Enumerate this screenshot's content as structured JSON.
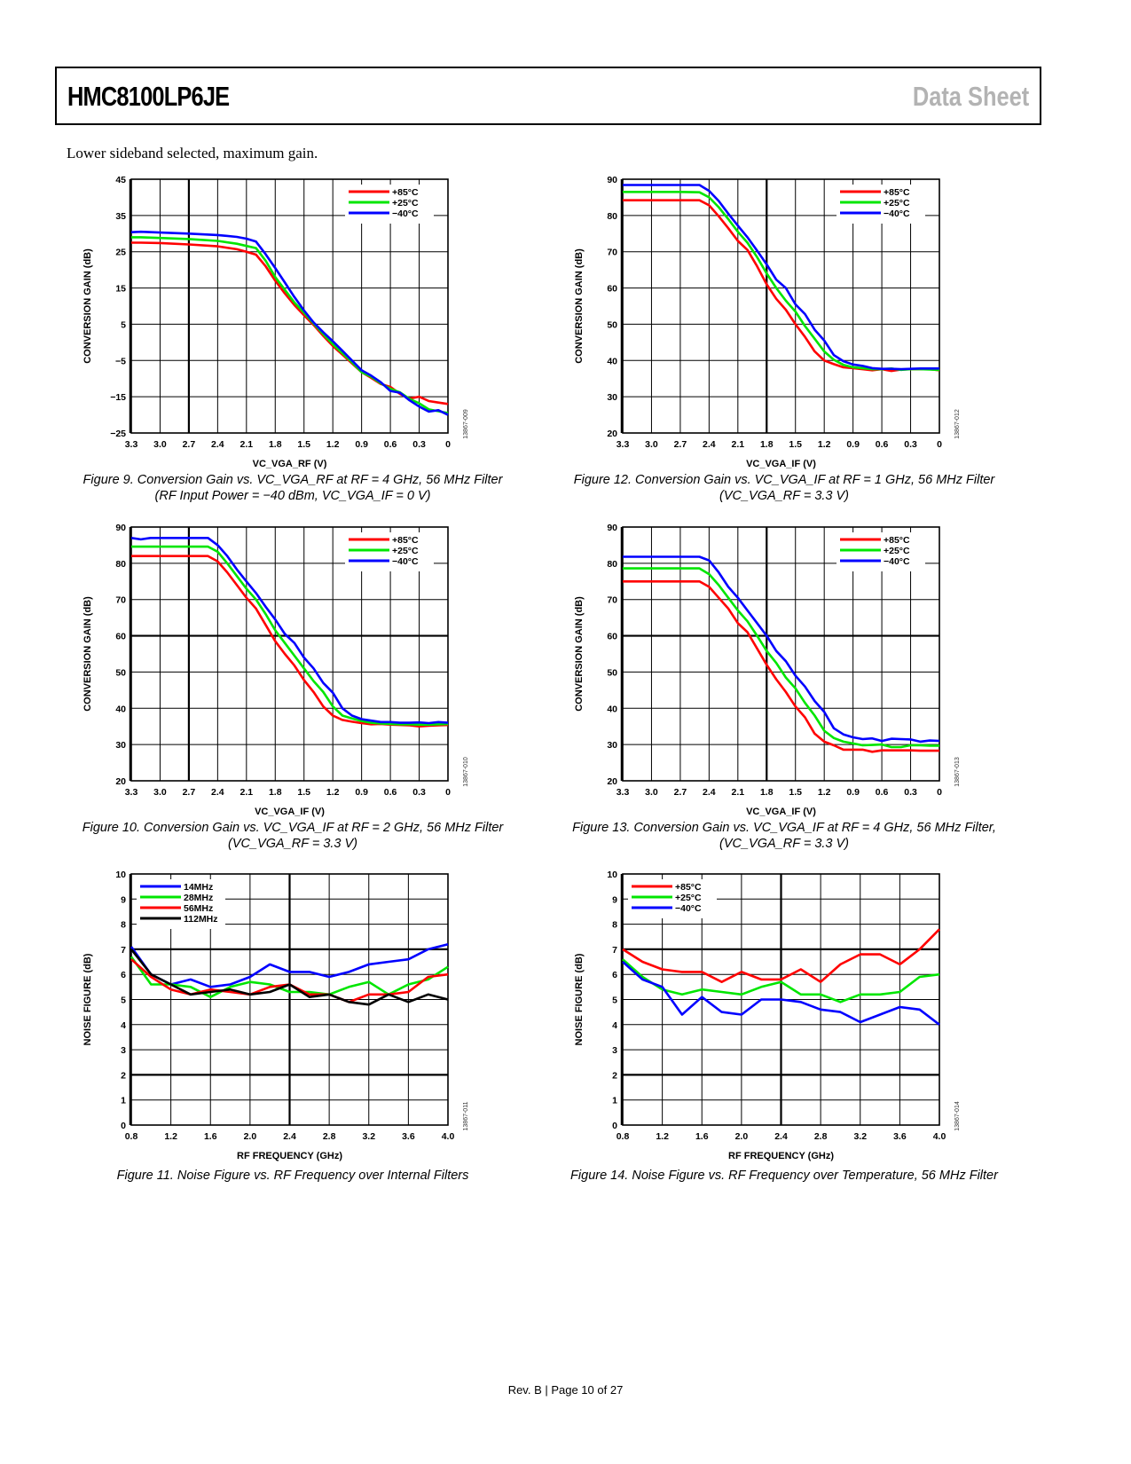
{
  "header": {
    "title": "HMC8100LP6JE",
    "sheet_label": "Data Sheet"
  },
  "intro": "Lower sideband selected, maximum gain.",
  "footer": "Rev. B | Page 10 of 27",
  "colors": {
    "red": "#ff0000",
    "green": "#00e600",
    "blue": "#0000ff",
    "black": "#000000"
  },
  "chart_data": [
    {
      "id": "fig9",
      "type": "line",
      "code": "13867-009",
      "caption_line1": "Figure 9. Conversion Gain vs. VC_VGA_RF at RF = 4 GHz, 56 MHz Filter",
      "caption_line2": "(RF Input Power = −40 dBm, VC_VGA_IF = 0 V)",
      "xlabel": "VC_VGA_RF (V)",
      "ylabel": "CONVERSION GAIN (dB)",
      "xlim": [
        3.3,
        0
      ],
      "ylim": [
        -25,
        45
      ],
      "x_ticks": [
        3.3,
        3.0,
        2.7,
        2.4,
        2.1,
        1.8,
        1.5,
        1.2,
        0.9,
        0.6,
        0.3,
        0
      ],
      "x_tick_labels": [
        "3.3",
        "3.0",
        "2.7",
        "2.4",
        "2.1",
        "1.8",
        "1.5",
        "1.2",
        "0.9",
        "0.6",
        "0.3",
        "0"
      ],
      "y_ticks": [
        45,
        35,
        25,
        15,
        5,
        -5,
        -15,
        -25
      ],
      "y_tick_labels": [
        "45",
        "35",
        "25",
        "15",
        "5",
        "−5",
        "−15",
        "−25"
      ],
      "grid": true,
      "legend_position": "top-right",
      "x": [
        3.3,
        3.2,
        3.0,
        2.7,
        2.4,
        2.2,
        2.1,
        2.0,
        1.9,
        1.8,
        1.7,
        1.6,
        1.5,
        1.4,
        1.3,
        1.2,
        1.1,
        1.0,
        0.9,
        0.8,
        0.7,
        0.6,
        0.5,
        0.4,
        0.3,
        0.2,
        0.1,
        0
      ],
      "series": [
        {
          "name": "+85°C",
          "color": "red",
          "values": [
            27.5,
            27.5,
            27.4,
            27.0,
            26.5,
            25.7,
            25.0,
            24.2,
            21.0,
            17.0,
            13.5,
            10.3,
            7.5,
            4.8,
            1.8,
            -1.0,
            -3.4,
            -5.8,
            -8.2,
            -9.8,
            -11.5,
            -12.3,
            -14.2,
            -15.5,
            -15.0,
            -16.2,
            -16.6,
            -17.0
          ]
        },
        {
          "name": "+25°C",
          "color": "green",
          "values": [
            29.0,
            29.0,
            28.8,
            28.5,
            28.0,
            27.2,
            26.6,
            26.0,
            22.5,
            18.0,
            14.5,
            11.0,
            8.2,
            5.2,
            2.3,
            -0.5,
            -3.0,
            -5.5,
            -8.2,
            -9.5,
            -11.3,
            -12.8,
            -13.8,
            -15.6,
            -16.8,
            -18.5,
            -19.0,
            -19.5
          ]
        },
        {
          "name": "−40°C",
          "color": "blue",
          "values": [
            30.4,
            30.5,
            30.3,
            30.0,
            29.6,
            29.1,
            28.6,
            27.8,
            24.3,
            20.5,
            16.5,
            12.5,
            8.8,
            5.5,
            2.8,
            0.3,
            -2.3,
            -5.0,
            -7.7,
            -9.2,
            -11.0,
            -13.4,
            -13.9,
            -16.0,
            -17.7,
            -19.1,
            -18.7,
            -20.0
          ]
        }
      ]
    },
    {
      "id": "fig12",
      "type": "line",
      "code": "13867-012",
      "caption_line1": "Figure 12. Conversion Gain vs. VC_VGA_IF at RF = 1 GHz, 56 MHz Filter",
      "caption_line2": "(VC_VGA_RF = 3.3 V)",
      "xlabel": "VC_VGA_IF (V)",
      "ylabel": "CONVERSION GAIN (dB)",
      "xlim": [
        3.3,
        0
      ],
      "ylim": [
        20,
        90
      ],
      "x_ticks": [
        3.3,
        3.0,
        2.7,
        2.4,
        2.1,
        1.8,
        1.5,
        1.2,
        0.9,
        0.6,
        0.3,
        0
      ],
      "x_tick_labels": [
        "3.3",
        "3.0",
        "2.7",
        "2.4",
        "2.1",
        "1.8",
        "1.5",
        "1.2",
        "0.9",
        "0.6",
        "0.3",
        "0"
      ],
      "y_ticks": [
        90,
        80,
        70,
        60,
        50,
        40,
        30,
        20
      ],
      "y_tick_labels": [
        "90",
        "80",
        "70",
        "60",
        "50",
        "40",
        "30",
        "20"
      ],
      "grid": true,
      "legend_position": "top-right",
      "x": [
        3.3,
        3.0,
        2.7,
        2.5,
        2.4,
        2.3,
        2.2,
        2.1,
        2.0,
        1.9,
        1.8,
        1.7,
        1.6,
        1.5,
        1.4,
        1.3,
        1.2,
        1.1,
        1.0,
        0.9,
        0.8,
        0.7,
        0.6,
        0.5,
        0.4,
        0.3,
        0.2,
        0.1,
        0
      ],
      "series": [
        {
          "name": "+85°C",
          "color": "red",
          "values": [
            84.2,
            84.2,
            84.2,
            84.2,
            82.8,
            79.8,
            76.5,
            73.0,
            70.5,
            66.0,
            61.0,
            57.0,
            54.0,
            50.0,
            46.5,
            42.5,
            40.0,
            39.0,
            38.1,
            37.9,
            37.6,
            37.3,
            37.6,
            37.1,
            37.5,
            37.6,
            37.6,
            37.6,
            37.3
          ]
        },
        {
          "name": "+25°C",
          "color": "green",
          "values": [
            86.5,
            86.5,
            86.5,
            86.4,
            85.0,
            82.3,
            79.0,
            75.5,
            72.5,
            68.5,
            64.0,
            60.0,
            56.5,
            53.5,
            49.5,
            46.0,
            42.5,
            40.2,
            38.8,
            38.1,
            37.9,
            37.6,
            37.6,
            37.8,
            37.4,
            37.6,
            37.6,
            37.5,
            37.4
          ]
        },
        {
          "name": "−40°C",
          "color": "blue",
          "values": [
            88.4,
            88.4,
            88.4,
            88.4,
            86.8,
            84.0,
            80.5,
            77.2,
            74.0,
            70.3,
            66.5,
            62.3,
            60.0,
            55.5,
            52.8,
            48.5,
            45.5,
            41.5,
            39.8,
            38.9,
            38.5,
            37.9,
            37.7,
            37.7,
            37.6,
            37.7,
            37.8,
            37.8,
            37.8
          ]
        }
      ]
    },
    {
      "id": "fig10",
      "type": "line",
      "code": "13867-010",
      "caption_line1": "Figure 10. Conversion Gain vs. VC_VGA_IF at RF = 2 GHz, 56 MHz Filter",
      "caption_line2": "(VC_VGA_RF = 3.3 V)",
      "xlabel": "VC_VGA_IF (V)",
      "ylabel": "CONVERSION GAIN (dB)",
      "xlim": [
        3.3,
        0
      ],
      "ylim": [
        20,
        90
      ],
      "x_ticks": [
        3.3,
        3.0,
        2.7,
        2.4,
        2.1,
        1.8,
        1.5,
        1.2,
        0.9,
        0.6,
        0.3,
        0
      ],
      "x_tick_labels": [
        "3.3",
        "3.0",
        "2.7",
        "2.4",
        "2.1",
        "1.8",
        "1.5",
        "1.2",
        "0.9",
        "0.6",
        "0.3",
        "0"
      ],
      "y_ticks": [
        90,
        80,
        70,
        60,
        50,
        40,
        30,
        20
      ],
      "y_tick_labels": [
        "90",
        "80",
        "70",
        "60",
        "50",
        "40",
        "30",
        "20"
      ],
      "grid": true,
      "legend_position": "top-right",
      "x": [
        3.3,
        3.2,
        3.1,
        3.0,
        2.7,
        2.5,
        2.4,
        2.3,
        2.2,
        2.1,
        2.0,
        1.9,
        1.8,
        1.7,
        1.6,
        1.5,
        1.4,
        1.3,
        1.2,
        1.1,
        1.0,
        0.9,
        0.8,
        0.7,
        0.6,
        0.5,
        0.4,
        0.3,
        0.2,
        0.1,
        0
      ],
      "series": [
        {
          "name": "+85°C",
          "color": "red",
          "values": [
            82.0,
            82.0,
            82.0,
            82.0,
            82.0,
            82.0,
            80.5,
            77.5,
            74.0,
            70.5,
            67.5,
            63.0,
            58.5,
            55.0,
            51.8,
            47.8,
            44.5,
            40.5,
            38.0,
            36.8,
            36.3,
            35.9,
            35.6,
            35.7,
            35.5,
            35.4,
            35.3,
            35.0,
            35.2,
            35.3,
            35.4
          ]
        },
        {
          "name": "+25°C",
          "color": "green",
          "values": [
            84.6,
            84.6,
            84.6,
            84.6,
            84.6,
            84.6,
            83.2,
            80.0,
            76.5,
            73.0,
            70.0,
            66.0,
            61.5,
            58.0,
            54.5,
            51.0,
            47.5,
            44.5,
            40.5,
            38.0,
            37.2,
            36.5,
            36.0,
            35.8,
            35.7,
            35.6,
            35.6,
            35.5,
            35.5,
            35.6,
            35.7
          ]
        },
        {
          "name": "−40°C",
          "color": "blue",
          "values": [
            87.0,
            86.6,
            87.0,
            87.0,
            87.0,
            87.0,
            85.0,
            82.0,
            78.3,
            75.0,
            71.8,
            68.0,
            64.5,
            60.5,
            58.0,
            54.0,
            51.0,
            47.0,
            44.3,
            40.0,
            38.0,
            37.0,
            36.6,
            36.2,
            36.2,
            36.0,
            36.0,
            36.1,
            35.9,
            36.2,
            36.0
          ]
        }
      ]
    },
    {
      "id": "fig13",
      "type": "line",
      "code": "13867-013",
      "caption_line1": "Figure 13. Conversion Gain vs. VC_VGA_IF at RF = 4 GHz, 56 MHz Filter,",
      "caption_line2": "(VC_VGA_RF = 3.3 V)",
      "xlabel": "VC_VGA_IF (V)",
      "ylabel": "CONVERSION GAIN (dB)",
      "xlim": [
        3.3,
        0
      ],
      "ylim": [
        20,
        90
      ],
      "x_ticks": [
        3.3,
        3.0,
        2.7,
        2.4,
        2.1,
        1.8,
        1.5,
        1.2,
        0.9,
        0.6,
        0.3,
        0
      ],
      "x_tick_labels": [
        "3.3",
        "3.0",
        "2.7",
        "2.4",
        "2.1",
        "1.8",
        "1.5",
        "1.2",
        "0.9",
        "0.6",
        "0.3",
        "0"
      ],
      "y_ticks": [
        90,
        80,
        70,
        60,
        50,
        40,
        30,
        20
      ],
      "y_tick_labels": [
        "90",
        "80",
        "70",
        "60",
        "50",
        "40",
        "30",
        "20"
      ],
      "grid": true,
      "legend_position": "top-right",
      "x": [
        3.3,
        3.0,
        2.7,
        2.5,
        2.4,
        2.3,
        2.2,
        2.1,
        2.0,
        1.9,
        1.8,
        1.7,
        1.6,
        1.5,
        1.4,
        1.3,
        1.2,
        1.1,
        1.0,
        0.9,
        0.8,
        0.7,
        0.6,
        0.5,
        0.4,
        0.3,
        0.2,
        0.1,
        0
      ],
      "series": [
        {
          "name": "+85°C",
          "color": "red",
          "values": [
            75.0,
            75.0,
            75.0,
            75.0,
            73.5,
            70.5,
            67.5,
            63.5,
            61.0,
            56.5,
            52.0,
            48.0,
            44.5,
            40.5,
            37.5,
            33.0,
            30.8,
            29.8,
            28.6,
            28.6,
            28.6,
            28.0,
            28.4,
            28.4,
            28.4,
            28.4,
            28.3,
            28.3,
            28.3
          ]
        },
        {
          "name": "+25°C",
          "color": "green",
          "values": [
            78.6,
            78.6,
            78.6,
            78.6,
            77.0,
            74.0,
            70.5,
            67.0,
            64.0,
            60.0,
            55.8,
            52.5,
            48.5,
            45.5,
            41.5,
            38.0,
            33.8,
            31.8,
            30.8,
            30.3,
            29.8,
            29.9,
            30.0,
            29.3,
            29.3,
            29.8,
            29.8,
            29.7,
            29.7
          ]
        },
        {
          "name": "−40°C",
          "color": "blue",
          "values": [
            81.8,
            81.8,
            81.8,
            81.8,
            80.8,
            77.5,
            73.5,
            70.5,
            67.0,
            63.5,
            60.0,
            55.8,
            53.0,
            49.0,
            46.0,
            42.0,
            39.0,
            34.5,
            32.8,
            32.0,
            31.5,
            31.7,
            31.0,
            31.6,
            31.5,
            31.4,
            30.8,
            31.1,
            31.0
          ]
        }
      ]
    },
    {
      "id": "fig11",
      "type": "line",
      "code": "13867-011",
      "caption_line1": "Figure 11. Noise Figure vs. RF Frequency over Internal Filters",
      "caption_line2": "",
      "xlabel": "RF FREQUENCY (GHz)",
      "ylabel": "NOISE FIGURE (dB)",
      "xlim": [
        0.8,
        4.0
      ],
      "ylim": [
        0,
        10
      ],
      "x_ticks": [
        0.8,
        1.2,
        1.6,
        2.0,
        2.4,
        2.8,
        3.2,
        3.6,
        4.0
      ],
      "x_tick_labels": [
        "0.8",
        "1.2",
        "1.6",
        "2.0",
        "2.4",
        "2.8",
        "3.2",
        "3.6",
        "4.0"
      ],
      "y_ticks": [
        10,
        9,
        8,
        7,
        6,
        5,
        4,
        3,
        2,
        1,
        0
      ],
      "y_tick_labels": [
        "10",
        "9",
        "8",
        "7",
        "6",
        "5",
        "4",
        "3",
        "2",
        "1",
        "0"
      ],
      "grid": true,
      "legend_position": "top-left",
      "x": [
        0.8,
        1.0,
        1.2,
        1.4,
        1.6,
        1.8,
        2.0,
        2.2,
        2.4,
        2.6,
        2.8,
        3.0,
        3.2,
        3.4,
        3.6,
        3.8,
        4.0
      ],
      "series": [
        {
          "name": "14MHz",
          "color": "blue",
          "values": [
            7.1,
            6.0,
            5.6,
            5.8,
            5.5,
            5.6,
            5.9,
            6.4,
            6.1,
            6.1,
            5.9,
            6.1,
            6.4,
            6.5,
            6.6,
            7.0,
            7.2
          ]
        },
        {
          "name": "28MHz",
          "color": "green",
          "values": [
            6.7,
            5.6,
            5.6,
            5.5,
            5.1,
            5.5,
            5.7,
            5.6,
            5.3,
            5.3,
            5.2,
            5.5,
            5.7,
            5.2,
            5.6,
            5.8,
            6.3
          ]
        },
        {
          "name": "56MHz",
          "color": "red",
          "values": [
            6.6,
            5.9,
            5.4,
            5.2,
            5.4,
            5.3,
            5.2,
            5.5,
            5.6,
            5.2,
            5.2,
            4.9,
            5.2,
            5.2,
            5.3,
            5.9,
            6.0
          ]
        },
        {
          "name": "112MHz",
          "color": "black",
          "values": [
            7.0,
            6.0,
            5.6,
            5.2,
            5.3,
            5.4,
            5.2,
            5.3,
            5.6,
            5.1,
            5.2,
            4.9,
            4.8,
            5.2,
            4.9,
            5.2,
            5.0
          ]
        }
      ]
    },
    {
      "id": "fig14",
      "type": "line",
      "code": "13867-014",
      "caption_line1": "Figure 14. Noise Figure vs. RF Frequency over Temperature, 56 MHz Filter",
      "caption_line2": "",
      "xlabel": "RF FREQUENCY (GHz)",
      "ylabel": "NOISE FIGURE (dB)",
      "xlim": [
        0.8,
        4.0
      ],
      "ylim": [
        0,
        10
      ],
      "x_ticks": [
        0.8,
        1.2,
        1.6,
        2.0,
        2.4,
        2.8,
        3.2,
        3.6,
        4.0
      ],
      "x_tick_labels": [
        "0.8",
        "1.2",
        "1.6",
        "2.0",
        "2.4",
        "2.8",
        "3.2",
        "3.6",
        "4.0"
      ],
      "y_ticks": [
        10,
        9,
        8,
        7,
        6,
        5,
        4,
        3,
        2,
        1,
        0
      ],
      "y_tick_labels": [
        "10",
        "9",
        "8",
        "7",
        "6",
        "5",
        "4",
        "3",
        "2",
        "1",
        "0"
      ],
      "grid": true,
      "legend_position": "top-left",
      "x": [
        0.8,
        1.0,
        1.2,
        1.4,
        1.6,
        1.8,
        2.0,
        2.2,
        2.4,
        2.6,
        2.8,
        3.0,
        3.2,
        3.4,
        3.6,
        3.8,
        4.0
      ],
      "series": [
        {
          "name": "+85°C",
          "color": "red",
          "values": [
            7.0,
            6.5,
            6.2,
            6.1,
            6.1,
            5.7,
            6.1,
            5.8,
            5.8,
            6.2,
            5.7,
            6.4,
            6.8,
            6.8,
            6.4,
            7.0,
            7.8
          ]
        },
        {
          "name": "+25°C",
          "color": "green",
          "values": [
            6.6,
            5.9,
            5.4,
            5.2,
            5.4,
            5.3,
            5.2,
            5.5,
            5.7,
            5.2,
            5.2,
            4.9,
            5.2,
            5.2,
            5.3,
            5.9,
            6.0
          ]
        },
        {
          "name": "−40°C",
          "color": "blue",
          "values": [
            6.5,
            5.8,
            5.5,
            4.4,
            5.1,
            4.5,
            4.4,
            5.0,
            5.0,
            4.9,
            4.6,
            4.5,
            4.1,
            4.4,
            4.7,
            4.6,
            4.0
          ]
        }
      ]
    }
  ]
}
